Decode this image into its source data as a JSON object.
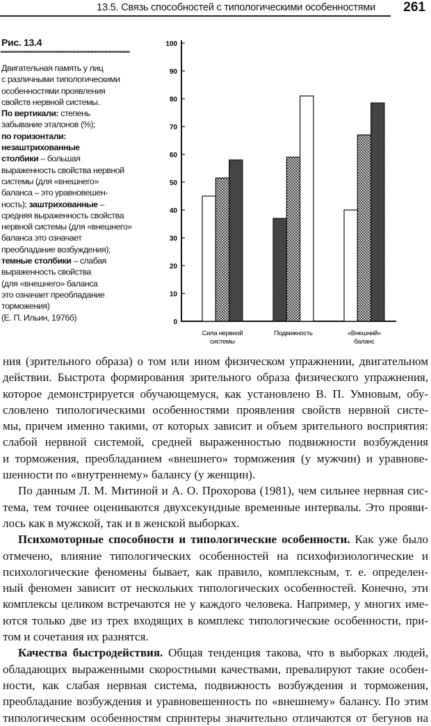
{
  "header": {
    "title": "13.5. Связь способностей с типологическими особенностями",
    "page_number": "261"
  },
  "figure": {
    "label": "Рис. 13.4",
    "caption_lines": [
      {
        "b": "",
        "t": "Двигательная память у лиц"
      },
      {
        "b": "",
        "t": "с различными типологическими"
      },
      {
        "b": "",
        "t": "особенностями проявления"
      },
      {
        "b": "",
        "t": "свойств нервной системы."
      },
      {
        "b": "По вертикали:",
        "t": " степень"
      },
      {
        "b": "",
        "t": "забывание эталонов (%);"
      },
      {
        "b": "по горизонтали:",
        "t": ""
      },
      {
        "b": "незаштрихованные",
        "t": ""
      },
      {
        "b": "столбики",
        "t": " – большая"
      },
      {
        "b": "",
        "t": "выраженность свойства нервной"
      },
      {
        "b": "",
        "t": "системы (для «внешнего»"
      },
      {
        "b": "",
        "t": "баланса – это уравновешен-"
      },
      {
        "b": "",
        "t": "ность); ",
        "b2": "заштрихованные",
        "t2": " –"
      },
      {
        "b": "",
        "t": "средняя выраженность свойства"
      },
      {
        "b": "",
        "t": "нервной системы (для «внешнего»"
      },
      {
        "b": "",
        "t": "баланса это означает"
      },
      {
        "b": "",
        "t": "преобладание возбуждения);"
      },
      {
        "b": "темные столбики",
        "t": " – слабая"
      },
      {
        "b": "",
        "t": "выраженность свойства"
      },
      {
        "b": "",
        "t": "(для «внешнего» баланса"
      },
      {
        "b": "",
        "t": "это означает преобладание"
      },
      {
        "b": "",
        "t": "торможения)"
      },
      {
        "b": "",
        "t": "(Е. П. Ильин, 1976б)"
      }
    ]
  },
  "chart_data": {
    "type": "bar",
    "title": "",
    "xlabel": "",
    "ylabel": "",
    "ylim": [
      0,
      100
    ],
    "yticks": [
      "0",
      "10",
      "20",
      "30",
      "40",
      "50",
      "60",
      "70",
      "80",
      "90",
      "100"
    ],
    "grid": false,
    "categories": [
      [
        "Сила нервной",
        "системы"
      ],
      [
        "Подвижность"
      ],
      [
        "«Внешний»",
        "баланс"
      ]
    ],
    "bars": [
      [
        {
          "fill": "white",
          "value": 45
        },
        {
          "fill": "hatched",
          "value": 51.5
        },
        {
          "fill": "dark",
          "value": 58
        }
      ],
      [
        {
          "fill": "dark",
          "value": 37
        },
        {
          "fill": "hatched",
          "value": 59
        },
        {
          "fill": "white",
          "value": 81
        }
      ],
      [
        {
          "fill": "white",
          "value": 40
        },
        {
          "fill": "hatched",
          "value": 67
        },
        {
          "fill": "dark",
          "value": 78.5
        }
      ]
    ],
    "colors": {
      "white": "#ffffff",
      "hatched": "#bdbdbd",
      "dark": "#3a3a3a",
      "stroke": "#111111"
    }
  },
  "body": {
    "lines": [
      {
        "t": "ния (зрительного образа) о том или ином физическом упражнении, двигательном"
      },
      {
        "t": "действии. Быстрота формирования зрительного образа физического упражнения,"
      },
      {
        "t": "которое демонстрируется обучающемуся, как установлено В. П. Умновым, обу-"
      },
      {
        "t": "словлено типологическими особенностями проявления свойств нервной систе-"
      },
      {
        "t": "мы, причем именно такими, от которых зависит и объем зрительного восприятия:"
      },
      {
        "t": "слабой нервной системой, средней выраженностью подвижности возбуждения"
      },
      {
        "t": "и торможения, преобладанием «внешнего» торможения (у мужчин) и уравнове-"
      },
      {
        "t": "шенности по «внутреннему» балансу (у женщин).",
        "end": true
      },
      {
        "t": "По данным Л. М. Митиной и А. О. Прохорова (1981), чем сильнее нервная сис-",
        "ind": true
      },
      {
        "t": "тема, тем точнее оцениваются двухсекундные временные интервалы. Это прояви-"
      },
      {
        "t": "лось как в мужской, так и в женской выборках.",
        "end": true
      },
      {
        "b": "Психомоторные способности и типологические особенности.",
        "t": " Как уже было",
        "ind": true
      },
      {
        "t": "отмечено, влияние типологических особенностей на психофизиологические и"
      },
      {
        "t": "психологические феномены бывает, как правило, комплексным, т. е. определен-"
      },
      {
        "t": "ный феномен зависит от нескольких типологических особенностей. Конечно, эти"
      },
      {
        "t": "комплексы целиком встречаются не у каждого человека. Например, у многих име-"
      },
      {
        "t": "ются только две из трех входящих в комплекс типологические особенности, при-"
      },
      {
        "t": "том и сочетания их разнятся.",
        "end": true
      },
      {
        "b": "Качества быстродействия.",
        "t": " Общая тенденция такова, что в выборках людей,",
        "ind": true
      },
      {
        "t": "обладающих выраженными скоростными качествами, превалируют такие особен-"
      },
      {
        "t": "ности, как слабая нервная система, подвижность возбуждения и торможения,"
      },
      {
        "t": "преобладание возбуждения и уравновешенность по «внешнему» балансу. По этим"
      },
      {
        "t": "типологическим особенностям спринтеры значительно отличаются от бегунов на"
      }
    ]
  }
}
